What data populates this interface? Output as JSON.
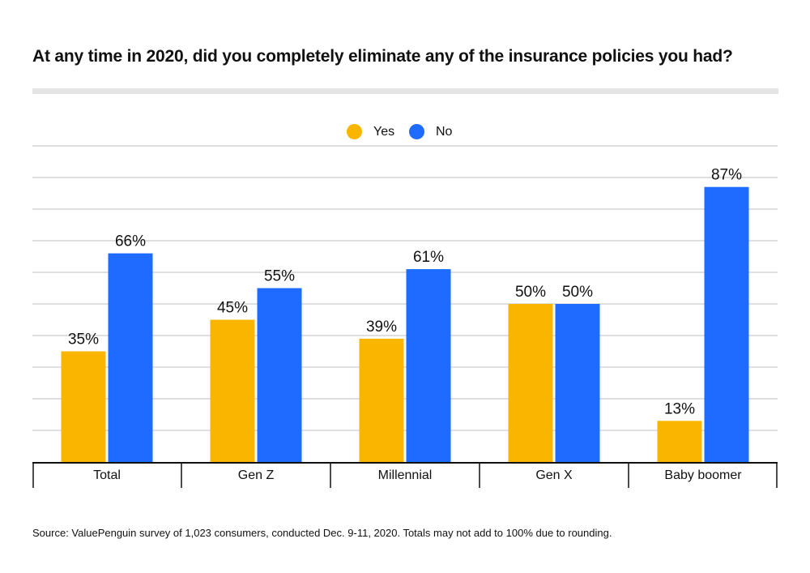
{
  "title": "At any time in 2020, did you completely eliminate any of the insurance policies you had?",
  "source": "Source: ValuePenguin survey of 1,023 consumers, conducted Dec. 9-11, 2020. Totals may not add to 100% due to rounding.",
  "colors": {
    "yes": "#F9B500",
    "no": "#1F6BFF",
    "grid": "#cccccc",
    "axis": "#111111",
    "rule": "#e4e4e4"
  },
  "legend": [
    {
      "label": "Yes",
      "color": "#F9B500"
    },
    {
      "label": "No",
      "color": "#1F6BFF"
    }
  ],
  "chart_data": {
    "type": "bar",
    "title": "At any time in 2020, did you completely eliminate any of the insurance policies you had?",
    "categories": [
      "Total",
      "Gen Z",
      "Millennial",
      "Gen X",
      "Baby boomer"
    ],
    "series": [
      {
        "name": "Yes",
        "values": [
          35,
          45,
          39,
          50,
          13
        ],
        "labels": [
          "35%",
          "45%",
          "39%",
          "50%",
          "13%"
        ]
      },
      {
        "name": "No",
        "values": [
          66,
          55,
          61,
          50,
          87
        ],
        "labels": [
          "66%",
          "55%",
          "61%",
          "50%",
          "87%"
        ]
      }
    ],
    "ylim": [
      0,
      100
    ],
    "grid": true,
    "legend_position": "top-center"
  }
}
